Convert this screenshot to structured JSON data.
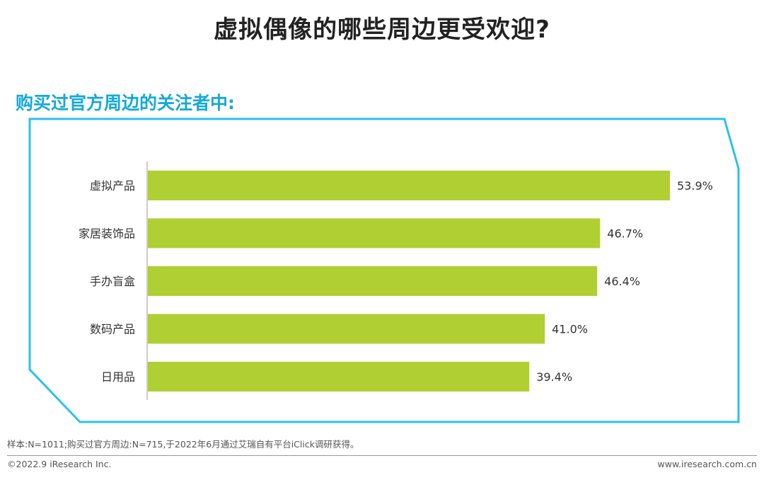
{
  "title": "虚拟偶像的哪些周边更受欢迎?",
  "colors": {
    "bar": "#afcf33",
    "accent": "#14a9d8",
    "frame": "#2cc1ea"
  },
  "chart_data": {
    "type": "bar",
    "orientation": "horizontal",
    "title": "购买过官方周边的关注者中:",
    "categories": [
      "虚拟产品",
      "家居装饰品",
      "手办盲盒",
      "数码产品",
      "日用品"
    ],
    "values": [
      53.9,
      46.7,
      46.4,
      41.0,
      39.4
    ],
    "value_labels": [
      "53.9%",
      "46.7%",
      "46.4%",
      "41.0%",
      "39.4%"
    ],
    "xlim": [
      0,
      55
    ],
    "grid": false,
    "legend": "none"
  },
  "footer": {
    "note": "样本:N=1011;购买过官方周边:N=715,于2022年6月通过艾瑞自有平台iClick调研获得。",
    "copyright": "©2022.9 iResearch Inc.",
    "website": "www.iresearch.com.cn"
  }
}
